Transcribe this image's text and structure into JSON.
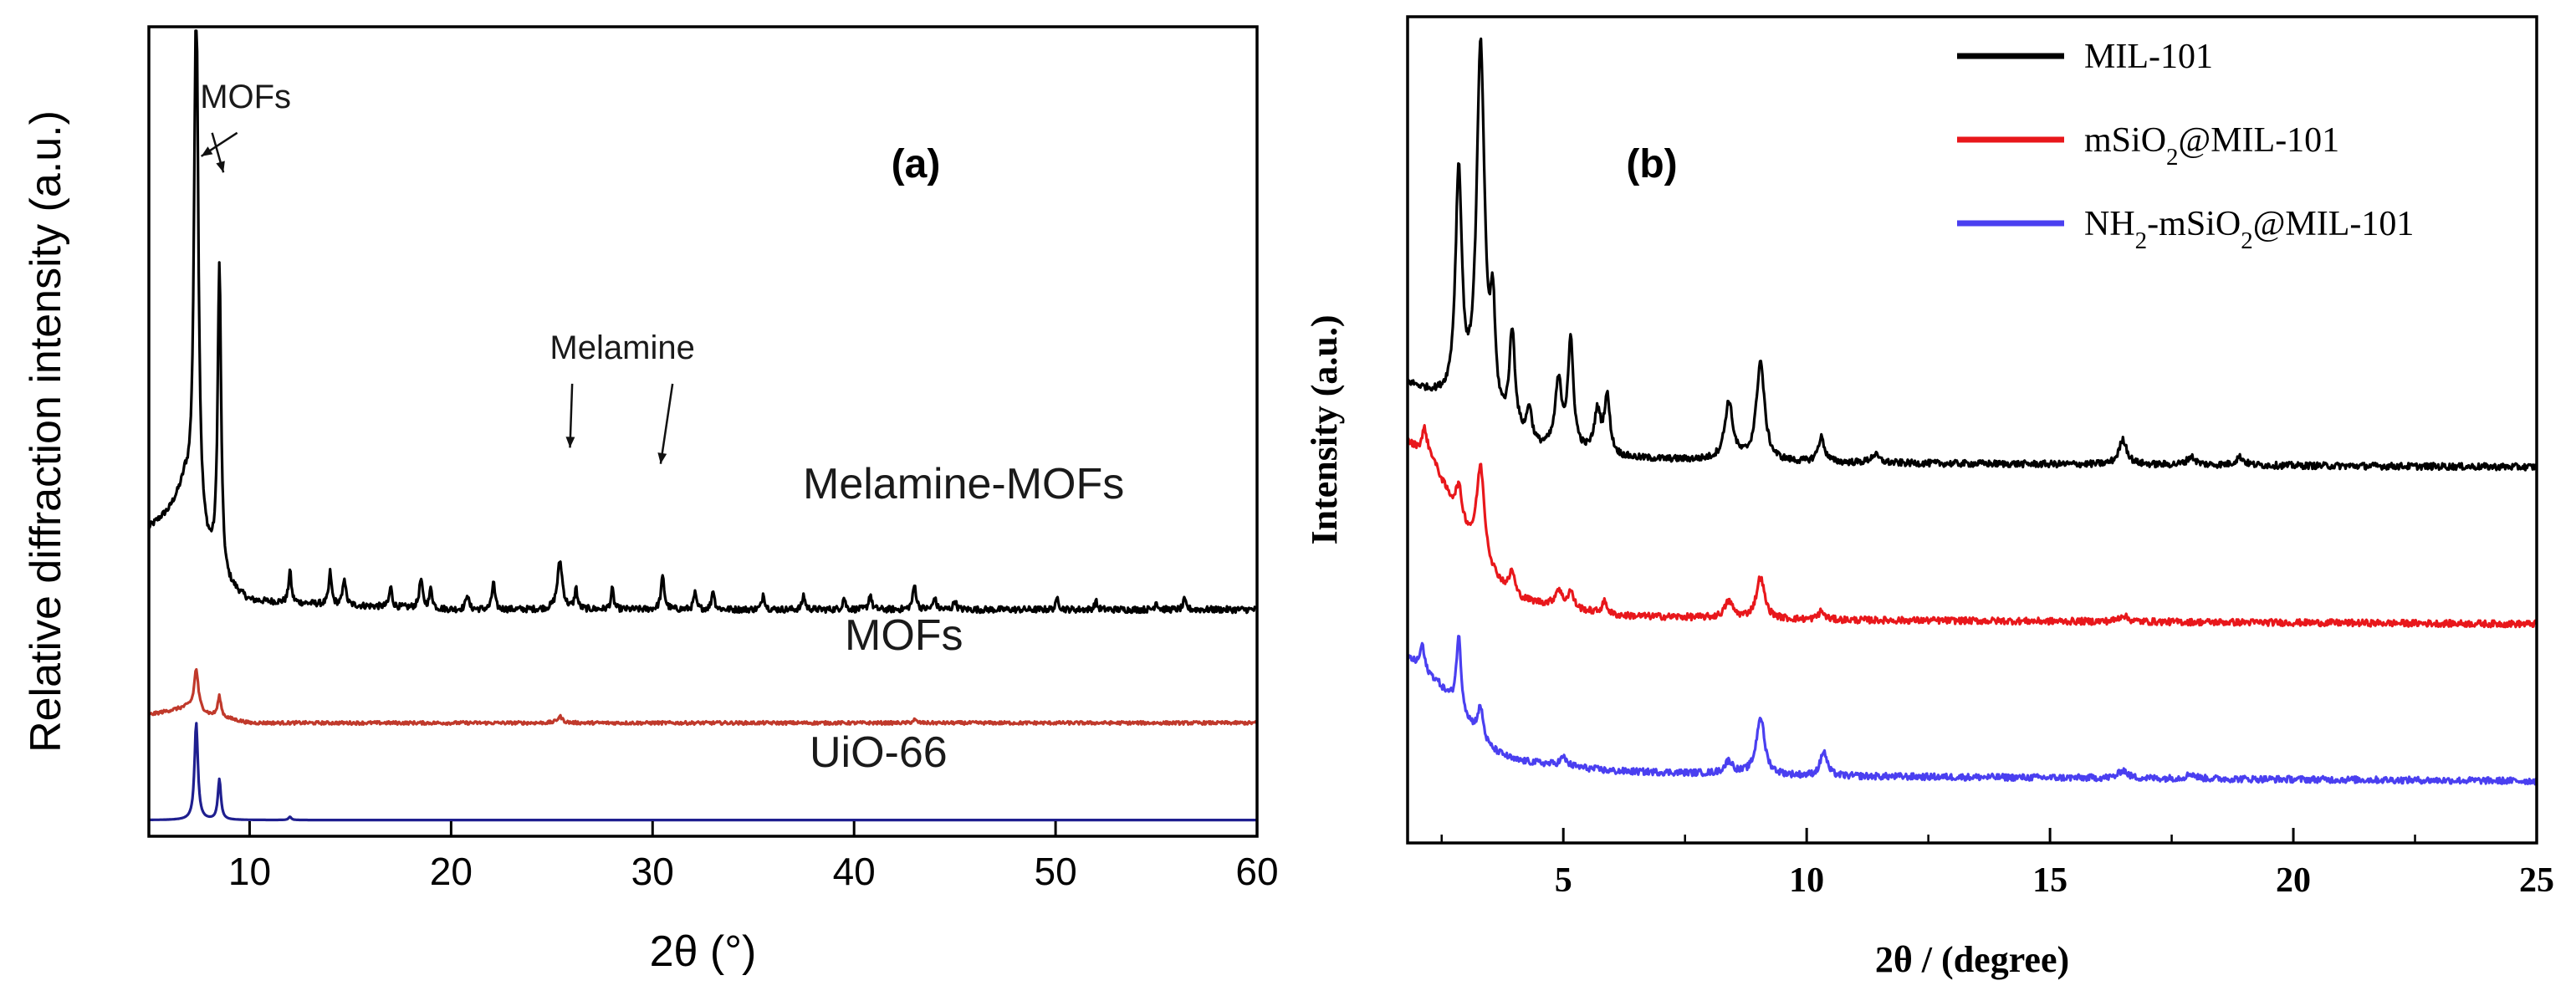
{
  "chart_data": [
    {
      "panel_label": "(a)",
      "type": "line",
      "title": "",
      "xlabel": "2θ (°)",
      "ylabel": "Relative diffraction intensity (a.u.)",
      "xlim": [
        5,
        60
      ],
      "xticks": [
        10,
        20,
        30,
        40,
        50,
        60
      ],
      "ylim": [
        0,
        1
      ],
      "y_ticklabels": false,
      "grid": false,
      "legend": "none (curves labeled inline)",
      "series": [
        {
          "name": "Melamine-MOFs",
          "color": "#000000",
          "baseline": 0.28,
          "background": [
            [
              5,
              0.1
            ],
            [
              6,
              0.12
            ],
            [
              6.8,
              0.15
            ],
            [
              7.6,
              0.08
            ],
            [
              8.8,
              0.03
            ],
            [
              10,
              0.01
            ],
            [
              20,
              0.0
            ],
            [
              60,
              0.0
            ]
          ],
          "noise": 0.004,
          "peaks": [
            {
              "x": 7.35,
              "h": 0.68,
              "w": 0.12
            },
            {
              "x": 8.5,
              "h": 0.38,
              "w": 0.1
            },
            {
              "x": 12.0,
              "h": 0.04,
              "w": 0.08
            },
            {
              "x": 14.0,
              "h": 0.04,
              "w": 0.08
            },
            {
              "x": 14.7,
              "h": 0.035,
              "w": 0.08
            },
            {
              "x": 17.0,
              "h": 0.025,
              "w": 0.08
            },
            {
              "x": 18.5,
              "h": 0.035,
              "w": 0.1
            },
            {
              "x": 19.0,
              "h": 0.025,
              "w": 0.08
            },
            {
              "x": 20.8,
              "h": 0.02,
              "w": 0.08
            },
            {
              "x": 22.1,
              "h": 0.035,
              "w": 0.08
            },
            {
              "x": 25.4,
              "h": 0.06,
              "w": 0.15
            },
            {
              "x": 26.2,
              "h": 0.025,
              "w": 0.08
            },
            {
              "x": 28.0,
              "h": 0.025,
              "w": 0.08
            },
            {
              "x": 30.5,
              "h": 0.04,
              "w": 0.1
            },
            {
              "x": 32.1,
              "h": 0.02,
              "w": 0.08
            },
            {
              "x": 33.0,
              "h": 0.025,
              "w": 0.08
            },
            {
              "x": 35.5,
              "h": 0.02,
              "w": 0.08
            },
            {
              "x": 37.5,
              "h": 0.018,
              "w": 0.08
            },
            {
              "x": 39.5,
              "h": 0.015,
              "w": 0.08
            },
            {
              "x": 40.8,
              "h": 0.02,
              "w": 0.08
            },
            {
              "x": 43.0,
              "h": 0.03,
              "w": 0.1
            },
            {
              "x": 44.0,
              "h": 0.015,
              "w": 0.08
            },
            {
              "x": 45.0,
              "h": 0.012,
              "w": 0.08
            },
            {
              "x": 50.1,
              "h": 0.015,
              "w": 0.08
            },
            {
              "x": 52.0,
              "h": 0.01,
              "w": 0.08
            },
            {
              "x": 55.0,
              "h": 0.01,
              "w": 0.08
            },
            {
              "x": 56.4,
              "h": 0.012,
              "w": 0.08
            }
          ]
        },
        {
          "name": "MOFs",
          "color": "#c0392b",
          "baseline": 0.14,
          "background": [
            [
              5,
              0.01
            ],
            [
              6,
              0.015
            ],
            [
              7,
              0.02
            ],
            [
              8,
              0.01
            ],
            [
              10,
              0.0
            ],
            [
              60,
              0.0
            ]
          ],
          "noise": 0.002,
          "peaks": [
            {
              "x": 7.35,
              "h": 0.05,
              "w": 0.12
            },
            {
              "x": 8.5,
              "h": 0.025,
              "w": 0.1
            },
            {
              "x": 25.4,
              "h": 0.008,
              "w": 0.15
            },
            {
              "x": 43.0,
              "h": 0.004,
              "w": 0.1
            }
          ]
        },
        {
          "name": "UiO-66",
          "color": "#1f1f8f",
          "baseline": 0.02,
          "background": [
            [
              5,
              0.0
            ],
            [
              60,
              0.0
            ]
          ],
          "noise": 0.0,
          "peaks": [
            {
              "x": 7.35,
              "h": 0.12,
              "w": 0.1
            },
            {
              "x": 8.5,
              "h": 0.05,
              "w": 0.09
            },
            {
              "x": 12.0,
              "h": 0.004,
              "w": 0.08
            }
          ]
        }
      ],
      "annotations": [
        {
          "text": "MOFs",
          "x": 9.8,
          "y": 0.9,
          "arrows_to": [
            [
              7.6,
              0.84
            ],
            [
              8.7,
              0.82
            ]
          ]
        },
        {
          "text": "Melamine",
          "x": 28.5,
          "y": 0.59,
          "arrows_to": [
            [
              25.9,
              0.48
            ],
            [
              30.4,
              0.46
            ]
          ]
        }
      ]
    },
    {
      "panel_label": "(b)",
      "type": "line",
      "title": "",
      "xlabel": "2θ / (degree)",
      "ylabel": "Intensity (a.u.)",
      "xlim": [
        1.8,
        25
      ],
      "xticks": [
        5,
        10,
        15,
        20,
        25
      ],
      "ylim": [
        0,
        1
      ],
      "y_ticklabels": false,
      "grid": false,
      "legend": "top-right",
      "series": [
        {
          "name": "MIL-101",
          "legend_parts": [
            [
              "MIL-101",
              ""
            ]
          ],
          "color": "#000000",
          "baseline": 0.455,
          "background": [
            [
              1.8,
              0.1
            ],
            [
              2.5,
              0.08
            ],
            [
              3.3,
              0.05
            ],
            [
              4.5,
              0.02
            ],
            [
              6,
              0.01
            ],
            [
              10,
              0.005
            ],
            [
              25,
              0.0
            ]
          ],
          "noise": 0.004,
          "peaks": [
            {
              "x": 2.85,
              "h": 0.28,
              "w": 0.08
            },
            {
              "x": 3.3,
              "h": 0.45,
              "w": 0.1
            },
            {
              "x": 3.55,
              "h": 0.12,
              "w": 0.06
            },
            {
              "x": 3.95,
              "h": 0.12,
              "w": 0.07
            },
            {
              "x": 4.3,
              "h": 0.04,
              "w": 0.06
            },
            {
              "x": 4.9,
              "h": 0.08,
              "w": 0.08
            },
            {
              "x": 5.15,
              "h": 0.13,
              "w": 0.07
            },
            {
              "x": 5.7,
              "h": 0.05,
              "w": 0.08
            },
            {
              "x": 5.9,
              "h": 0.07,
              "w": 0.07
            },
            {
              "x": 8.4,
              "h": 0.07,
              "w": 0.1
            },
            {
              "x": 9.05,
              "h": 0.12,
              "w": 0.1
            },
            {
              "x": 10.3,
              "h": 0.03,
              "w": 0.08
            },
            {
              "x": 11.4,
              "h": 0.01,
              "w": 0.1
            },
            {
              "x": 16.5,
              "h": 0.03,
              "w": 0.1
            },
            {
              "x": 17.9,
              "h": 0.01,
              "w": 0.1
            },
            {
              "x": 18.9,
              "h": 0.01,
              "w": 0.1
            }
          ]
        },
        {
          "name": "mSiO2@MIL-101",
          "legend_parts": [
            [
              "mSiO",
              ""
            ],
            [
              "2",
              "sub"
            ],
            [
              "@MIL-101",
              ""
            ]
          ],
          "color": "#e8171b",
          "baseline": 0.265,
          "background": [
            [
              1.8,
              0.22
            ],
            [
              2.3,
              0.2
            ],
            [
              2.8,
              0.13
            ],
            [
              3.3,
              0.07
            ],
            [
              4,
              0.03
            ],
            [
              6,
              0.01
            ],
            [
              10,
              0.005
            ],
            [
              25,
              0.0
            ]
          ],
          "noise": 0.004,
          "peaks": [
            {
              "x": 2.15,
              "h": 0.03,
              "w": 0.06
            },
            {
              "x": 2.85,
              "h": 0.04,
              "w": 0.08
            },
            {
              "x": 3.3,
              "h": 0.12,
              "w": 0.1
            },
            {
              "x": 3.95,
              "h": 0.03,
              "w": 0.07
            },
            {
              "x": 4.9,
              "h": 0.02,
              "w": 0.08
            },
            {
              "x": 5.15,
              "h": 0.02,
              "w": 0.07
            },
            {
              "x": 5.85,
              "h": 0.015,
              "w": 0.07
            },
            {
              "x": 8.4,
              "h": 0.02,
              "w": 0.1
            },
            {
              "x": 9.05,
              "h": 0.05,
              "w": 0.1
            },
            {
              "x": 10.3,
              "h": 0.01,
              "w": 0.08
            },
            {
              "x": 16.5,
              "h": 0.008,
              "w": 0.1
            }
          ]
        },
        {
          "name": "NH2-mSiO2@MIL-101",
          "legend_parts": [
            [
              "NH",
              ""
            ],
            [
              "2",
              "sub"
            ],
            [
              "-mSiO",
              ""
            ],
            [
              "2",
              "sub"
            ],
            [
              "@MIL-101",
              ""
            ]
          ],
          "color": "#4a3ff0",
          "baseline": 0.075,
          "background": [
            [
              1.8,
              0.15
            ],
            [
              2.4,
              0.12
            ],
            [
              2.9,
              0.08
            ],
            [
              3.4,
              0.04
            ],
            [
              4,
              0.025
            ],
            [
              6,
              0.012
            ],
            [
              10,
              0.006
            ],
            [
              25,
              0.0
            ]
          ],
          "noise": 0.004,
          "peaks": [
            {
              "x": 2.1,
              "h": 0.03,
              "w": 0.05
            },
            {
              "x": 2.85,
              "h": 0.09,
              "w": 0.06
            },
            {
              "x": 3.3,
              "h": 0.04,
              "w": 0.08
            },
            {
              "x": 5.0,
              "h": 0.01,
              "w": 0.08
            },
            {
              "x": 8.4,
              "h": 0.015,
              "w": 0.1
            },
            {
              "x": 9.05,
              "h": 0.07,
              "w": 0.1
            },
            {
              "x": 10.35,
              "h": 0.03,
              "w": 0.08
            },
            {
              "x": 16.5,
              "h": 0.01,
              "w": 0.1
            },
            {
              "x": 17.9,
              "h": 0.006,
              "w": 0.1
            }
          ]
        }
      ]
    }
  ]
}
